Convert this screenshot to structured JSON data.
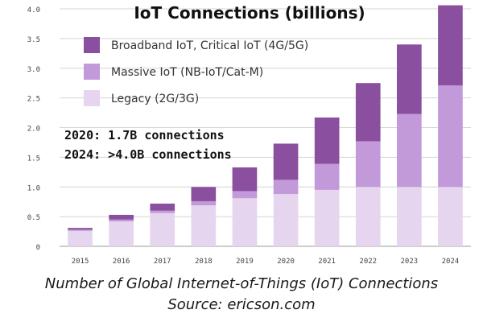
{
  "chart_data": {
    "type": "bar",
    "stacked": true,
    "title": "IoT Connections (billions)",
    "categories": [
      "2015",
      "2016",
      "2017",
      "2018",
      "2019",
      "2020",
      "2021",
      "2022",
      "2023",
      "2024"
    ],
    "series": [
      {
        "name": "Legacy (2G/3G)",
        "color": "#e6d5ee",
        "values": [
          0.26,
          0.42,
          0.56,
          0.69,
          0.81,
          0.88,
          0.95,
          1.0,
          1.0,
          1.0
        ]
      },
      {
        "name": "Massive IoT (NB-IoT/Cat-M)",
        "color": "#c29ad9",
        "values": [
          0.02,
          0.03,
          0.04,
          0.07,
          0.12,
          0.24,
          0.44,
          0.77,
          1.23,
          1.71
        ]
      },
      {
        "name": "Broadband IoT, Critical IoT (4G/5G)",
        "color": "#8a4f9e",
        "values": [
          0.03,
          0.08,
          0.12,
          0.24,
          0.4,
          0.61,
          0.78,
          0.98,
          1.17,
          1.35
        ]
      }
    ],
    "legend_order": [
      2,
      1,
      0
    ],
    "legend_position": "top-left",
    "ylim": [
      0,
      4.0
    ],
    "yticks": [
      "0",
      "0.5",
      "1.0",
      "1.5",
      "2.0",
      "2.5",
      "3.0",
      "3.5",
      "4.0"
    ],
    "grid": true,
    "annotations": [
      "2020:  1.7B connections",
      "2024:  >4.0B connections"
    ]
  },
  "caption": {
    "line1": "Number of Global Internet-of-Things (IoT) Connections",
    "line2": "Source: ericson.com"
  }
}
